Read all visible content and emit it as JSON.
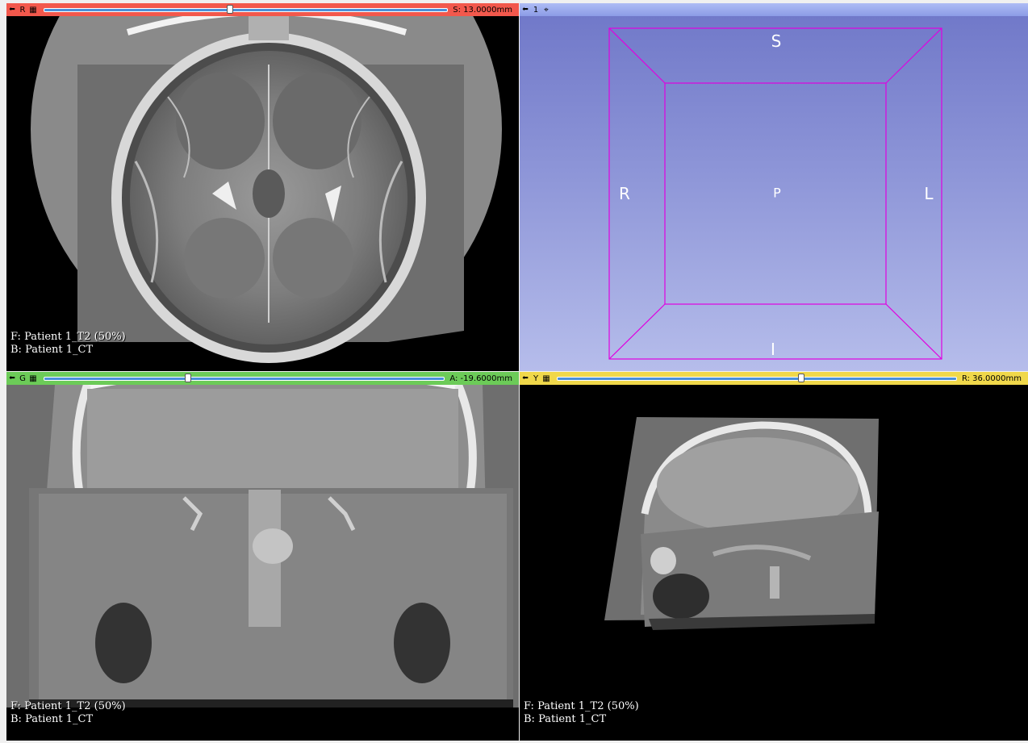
{
  "views": {
    "red": {
      "letter": "R",
      "offset": "S: 13.0000mm",
      "slider_position": 0.46,
      "foreground": "F: Patient 1_T2 (50%)",
      "background": "B: Patient 1_CT"
    },
    "three_d": {
      "letter": "1",
      "orientation": {
        "top": "S",
        "bottom": "I",
        "left": "R",
        "right": "L",
        "center": "P"
      }
    },
    "green": {
      "letter": "G",
      "offset": "A: -19.6000mm",
      "slider_position": 0.36,
      "foreground": "F: Patient 1_T2 (50%)",
      "background": "B: Patient 1_CT"
    },
    "yellow": {
      "letter": "Y",
      "offset": "R: 36.0000mm",
      "slider_position": 0.61,
      "foreground": "F: Patient 1_T2 (50%)",
      "background": "B: Patient 1_CT"
    }
  },
  "icons": {
    "pin": "pin-icon",
    "link": "link-icon",
    "center": "center-view-icon"
  },
  "colors": {
    "red_bar": "#f2584c",
    "green_bar": "#6ccb58",
    "yellow_bar": "#f0d84a",
    "three_d_bar": "#9aa8ee",
    "bounding_box": "#e000e0"
  }
}
